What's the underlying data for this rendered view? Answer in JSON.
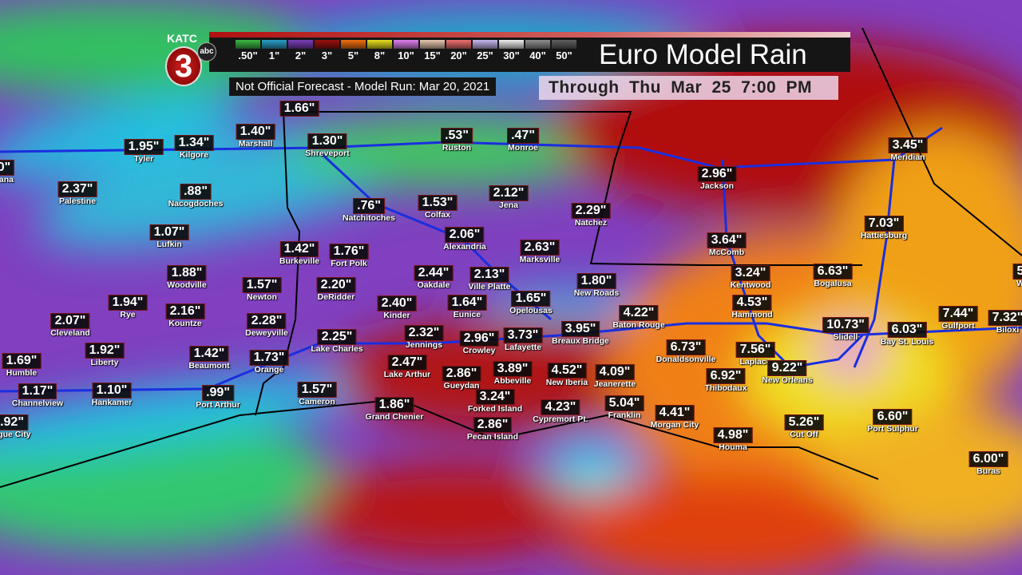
{
  "header": {
    "station": "KATC",
    "channel": "3",
    "network": "abc",
    "title": "Euro Model Rain",
    "subtitle": "Not Official Forecast - Model Run:  Mar 20, 2021",
    "through": "Through  Thu  Mar 25   7:00 PM"
  },
  "legend": [
    {
      "label": ".50\"",
      "color": "#3cb843"
    },
    {
      "label": "1\"",
      "color": "#2aa0c8"
    },
    {
      "label": "2\"",
      "color": "#7a3fb8"
    },
    {
      "label": "3\"",
      "color": "#9a1010"
    },
    {
      "label": "5\"",
      "color": "#f07010"
    },
    {
      "label": "8\"",
      "color": "#e8e020"
    },
    {
      "label": "10\"",
      "color": "#e080f0"
    },
    {
      "label": "15\"",
      "color": "#e8c8b0"
    },
    {
      "label": "20\"",
      "color": "#f07070"
    },
    {
      "label": "25\"",
      "color": "#c8b8f0"
    },
    {
      "label": "30\"",
      "color": "#f0f0f0"
    },
    {
      "label": "40\"",
      "color": "#909090"
    },
    {
      "label": "50\"",
      "color": "#606060"
    }
  ],
  "cities": [
    {
      "value": "1.66\"",
      "name": ""
    },
    {
      "value": "0\"",
      "name": "cana"
    },
    {
      "value": "1.95\"",
      "name": "Tyler"
    },
    {
      "value": "1.34\"",
      "name": "Kilgore"
    },
    {
      "value": "1.40\"",
      "name": "Marshall"
    },
    {
      "value": "1.30\"",
      "name": "Shreveport"
    },
    {
      "value": ".53\"",
      "name": "Ruston"
    },
    {
      "value": ".47\"",
      "name": "Monroe"
    },
    {
      "value": "2.37\"",
      "name": "Palestine"
    },
    {
      "value": ".88\"",
      "name": "Nacogdoches"
    },
    {
      "value": ".76\"",
      "name": "Natchitoches"
    },
    {
      "value": "1.53\"",
      "name": "Colfax"
    },
    {
      "value": "2.12\"",
      "name": "Jena"
    },
    {
      "value": "2.29\"",
      "name": "Natchez"
    },
    {
      "value": "2.96\"",
      "name": "Jackson"
    },
    {
      "value": "3.45\"",
      "name": "Meridian"
    },
    {
      "value": "7.03\"",
      "name": "Hattiesburg"
    },
    {
      "value": "1.07\"",
      "name": "Lufkin"
    },
    {
      "value": "1.42\"",
      "name": "Burkeville"
    },
    {
      "value": "1.76\"",
      "name": "Fort Polk"
    },
    {
      "value": "2.06\"",
      "name": "Alexandria"
    },
    {
      "value": "2.63\"",
      "name": "Marksville"
    },
    {
      "value": "3.64\"",
      "name": "McComb"
    },
    {
      "value": "3.24\"",
      "name": "Kentwood"
    },
    {
      "value": "6.63\"",
      "name": "Bogalusa"
    },
    {
      "value": "1.88\"",
      "name": "Woodville"
    },
    {
      "value": "1.57\"",
      "name": "Newton"
    },
    {
      "value": "2.20\"",
      "name": "DeRidder"
    },
    {
      "value": "2.44\"",
      "name": "Oakdale"
    },
    {
      "value": "2.13\"",
      "name": "Ville Platte"
    },
    {
      "value": "1.80\"",
      "name": "New Roads"
    },
    {
      "value": "4.53\"",
      "name": "Hammond"
    },
    {
      "value": "1.94\"",
      "name": "Rye"
    },
    {
      "value": "2.16\"",
      "name": "Kountze"
    },
    {
      "value": "2.28\"",
      "name": "Deweyville"
    },
    {
      "value": "2.40\"",
      "name": "Kinder"
    },
    {
      "value": "1.64\"",
      "name": "Eunice"
    },
    {
      "value": "1.65\"",
      "name": "Opelousas"
    },
    {
      "value": "4.22\"",
      "name": "Baton Rouge"
    },
    {
      "value": "2.07\"",
      "name": "Cleveland"
    },
    {
      "value": "2.25\"",
      "name": "Lake Charles"
    },
    {
      "value": "2.32\"",
      "name": "Jennings"
    },
    {
      "value": "2.96\"",
      "name": "Crowley"
    },
    {
      "value": "3.73\"",
      "name": "Lafayette"
    },
    {
      "value": "3.95\"",
      "name": "Breaux Bridge"
    },
    {
      "value": "6.73\"",
      "name": "Donaldsonville"
    },
    {
      "value": "7.56\"",
      "name": "Laplace"
    },
    {
      "value": "10.73\"",
      "name": "Slidell"
    },
    {
      "value": "6.03\"",
      "name": "Bay St. Louis"
    },
    {
      "value": "7.44\"",
      "name": "Gulfport"
    },
    {
      "value": "7.32\"",
      "name": "Biloxi"
    },
    {
      "value": "1.69\"",
      "name": "Humble"
    },
    {
      "value": "1.92\"",
      "name": "Liberty"
    },
    {
      "value": "1.42\"",
      "name": "Beaumont"
    },
    {
      "value": "1.73\"",
      "name": "Orange"
    },
    {
      "value": "2.47\"",
      "name": "Lake Arthur"
    },
    {
      "value": "2.86\"",
      "name": "Gueydan"
    },
    {
      "value": "3.89\"",
      "name": "Abbeville"
    },
    {
      "value": "4.52\"",
      "name": "New Iberia"
    },
    {
      "value": "4.09\"",
      "name": "Jeanerette"
    },
    {
      "value": "9.22\"",
      "name": "New Orleans"
    },
    {
      "value": "6.92\"",
      "name": "Thibodaux"
    },
    {
      "value": "1.17\"",
      "name": "Channelview"
    },
    {
      "value": "1.10\"",
      "name": "Hankamer"
    },
    {
      "value": ".99\"",
      "name": "Port Arthur"
    },
    {
      "value": "1.57\"",
      "name": "Cameron"
    },
    {
      "value": "1.86\"",
      "name": "Grand Chenier"
    },
    {
      "value": "3.24\"",
      "name": "Forked Island"
    },
    {
      "value": "4.23\"",
      "name": "Cypremort Pt."
    },
    {
      "value": "5.04\"",
      "name": "Franklin"
    },
    {
      "value": "4.41\"",
      "name": "Morgan City"
    },
    {
      "value": "4.98\"",
      "name": "Houma"
    },
    {
      "value": "5.26\"",
      "name": "Cut Off"
    },
    {
      "value": "6.60\"",
      "name": "Port Sulphur"
    },
    {
      "value": "2.86\"",
      "name": "Pecan Island"
    },
    {
      "value": ".92\"",
      "name": "ague City"
    },
    {
      "value": "6.00\"",
      "name": "Buras"
    },
    {
      "value": "5",
      "name": "W"
    }
  ]
}
